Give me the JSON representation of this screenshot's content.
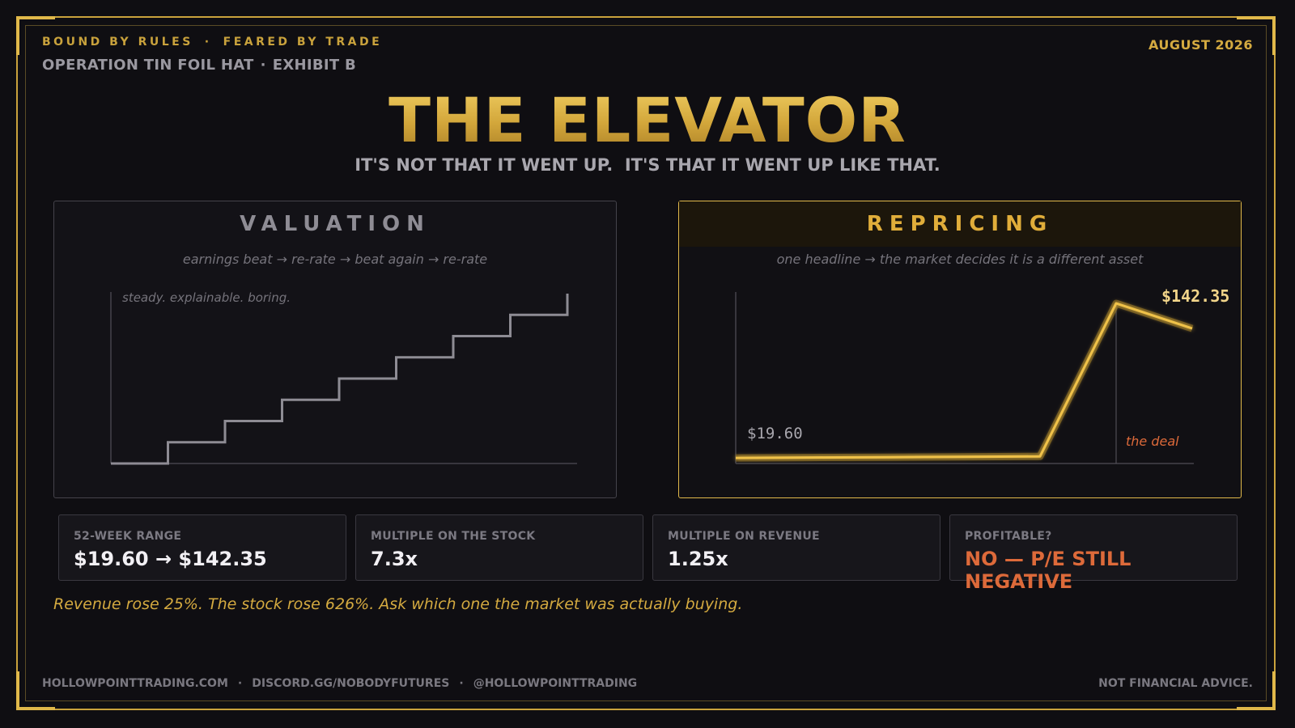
{
  "header": {
    "tag_left": "BOUND BY RULES",
    "tag_sep": "·",
    "tag_right": "FEARED BY TRADE",
    "op_name": "OPERATION TIN FOIL HAT",
    "op_sep": "·",
    "exhibit": "EXHIBIT B",
    "date": "AUGUST 2026"
  },
  "title": "THE ELEVATOR",
  "subtitle": "IT'S NOT THAT IT WENT UP.  IT'S THAT IT WENT UP LIKE THAT.",
  "panels": {
    "valuation": {
      "heading": "VALUATION",
      "note": "earnings beat  →  re-rate  →  beat again  →  re-rate",
      "chart_caption": "steady. explainable. boring."
    },
    "repricing": {
      "heading": "REPRICING",
      "note": "one headline  →  the market decides it is a different asset",
      "start_label": "$19.60",
      "peak_label": "$142.35",
      "event_label": "the deal"
    }
  },
  "stats": [
    {
      "label": "52-WEEK RANGE",
      "value": "$19.60 → $142.35"
    },
    {
      "label": "MULTIPLE ON THE STOCK",
      "value": "7.3x"
    },
    {
      "label": "MULTIPLE ON REVENUE",
      "value": "1.25x"
    },
    {
      "label": "PROFITABLE?",
      "value": "NO — P/E STILL NEGATIVE"
    }
  ],
  "quote": "Revenue rose 25%. The stock rose 626%. Ask which one the market was actually buying.",
  "footer": {
    "site": "HOLLOWPOINTTRADING.COM",
    "discord": "DISCORD.GG/NOBODYFUTURES",
    "handle": "@HOLLOWPOINTTRADING",
    "sep": "·",
    "disclaimer": "NOT FINANCIAL ADVICE."
  },
  "colors": {
    "gold": "#e0b84a",
    "warn": "#dd6a3a",
    "gray_line": "#8e8c94"
  },
  "chart_data": [
    {
      "type": "line",
      "name_ref": "valuation",
      "x": [
        0,
        1,
        2,
        3,
        4,
        5,
        6,
        7
      ],
      "y": [
        0,
        1,
        2,
        3,
        4,
        5,
        6,
        7
      ],
      "step": true
    },
    {
      "type": "line",
      "name_ref": "repricing",
      "x": [
        0,
        1,
        2,
        3,
        4,
        5,
        6
      ],
      "y": [
        19.6,
        20.5,
        21.5,
        22.5,
        23.5,
        142.35,
        120
      ],
      "start_value": 19.6,
      "peak_value": 142.35,
      "event_x": 5
    }
  ]
}
